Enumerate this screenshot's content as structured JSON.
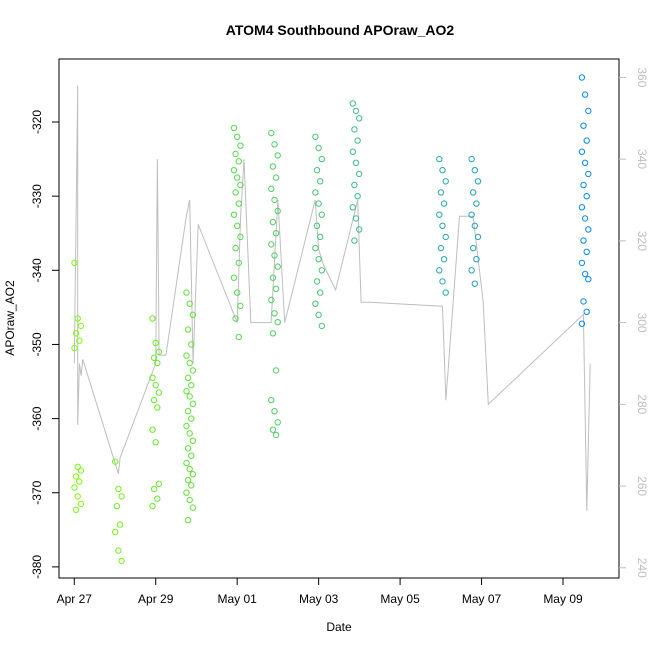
{
  "chart_data": {
    "type": "scatter",
    "title": "ATOM4 Southbound APOraw_AO2",
    "xlabel": "Date",
    "ylabel": "APOraw_AO2",
    "x_ticks": [
      "Apr 27",
      "Apr 29",
      "May 01",
      "May 03",
      "May 05",
      "May 07",
      "May 09"
    ],
    "y_ticks": [
      -320,
      -330,
      -340,
      -350,
      -360,
      -370,
      -380
    ],
    "y2_ticks": [
      240,
      260,
      280,
      300,
      320,
      340,
      360
    ],
    "xlim": [
      "2016-04-26 15:00",
      "2016-05-10 09:00"
    ],
    "ylim": [
      -381.5,
      -311.5
    ],
    "y2lim": [
      237.5,
      364.5
    ],
    "grid": false,
    "colors": {
      "points_start": "#80ff00",
      "points_end": "#0080ff",
      "line": "#bebebe",
      "axis": "#000000",
      "axis_right": "#bebebe"
    },
    "series": [
      {
        "type": "points",
        "clusters": [
          {
            "x": "2016-04-27 02:00",
            "y": [
              -339,
              -346.5,
              -347.5,
              -348.5,
              -349.5,
              -350.5,
              -366.5,
              -367,
              -367.8,
              -368.5,
              -369.3,
              -370.5,
              -371.5,
              -372.3
            ]
          },
          {
            "x": "2016-04-28 02:00",
            "y": [
              -365.8,
              -369.5,
              -370.5,
              -371.8,
              -374.3,
              -375.3,
              -377.8,
              -379.2
            ]
          },
          {
            "x": "2016-04-29 00:00",
            "y": [
              -346.5,
              -349.8,
              -351,
              -351.8,
              -352.5,
              -354.5,
              -355.5,
              -356.5,
              -357.5,
              -358.5,
              -361.5,
              -363.2,
              -368.8,
              -369.5,
              -370.8,
              -371.8
            ]
          },
          {
            "x": "2016-04-29 20:00",
            "y": [
              -343,
              -344.5,
              -346,
              -348,
              -350,
              -351.5,
              -352.5,
              -353.5,
              -354.5,
              -355.5,
              -356.3,
              -357,
              -358,
              -359,
              -360,
              -361,
              -362,
              -363,
              -364,
              -365,
              -366,
              -366.8,
              -367.5,
              -368.3,
              -369,
              -370,
              -371,
              -372,
              -373.7
            ]
          },
          {
            "x": "2016-05-01 00:00",
            "y": [
              -320.8,
              -322,
              -323.2,
              -324.3,
              -325.3,
              -326.5,
              -327.5,
              -328.5,
              -329.5,
              -331,
              -332.5,
              -334,
              -335.5,
              -337,
              -339,
              -341,
              -343,
              -344.8,
              -346.5,
              -349
            ]
          },
          {
            "x": "2016-05-01 22:00",
            "y": [
              -321.5,
              -323,
              -324.5,
              -326,
              -327.5,
              -329,
              -330.5,
              -332,
              -333.5,
              -335,
              -336.5,
              -338,
              -339.5,
              -341,
              -342.5,
              -344,
              -345.8,
              -347,
              -348.5,
              -353.5,
              -357.5,
              -359,
              -360.5,
              -361.5,
              -362.2
            ]
          },
          {
            "x": "2016-05-03 00:00",
            "y": [
              -322,
              -323.5,
              -325,
              -326.5,
              -328,
              -329.5,
              -331,
              -332.5,
              -334,
              -335.5,
              -337,
              -338.5,
              -340,
              -341.5,
              -343,
              -344.5,
              -346,
              -347.5
            ]
          },
          {
            "x": "2016-05-03 22:00",
            "y": [
              -317.5,
              -318.5,
              -319.5,
              -321,
              -322.5,
              -324,
              -325.5,
              -327,
              -328.5,
              -330,
              -331.5,
              -333,
              -334.5,
              -336
            ]
          },
          {
            "x": "2016-05-06 01:00",
            "y": [
              -325,
              -326.5,
              -328,
              -329.5,
              -331,
              -332.5,
              -334,
              -335.5,
              -337,
              -338.5,
              -340,
              -341.5,
              -343
            ]
          },
          {
            "x": "2016-05-06 20:00",
            "y": [
              -325,
              -326.5,
              -328,
              -329.5,
              -331,
              -332.5,
              -334,
              -335.5,
              -337,
              -338.5,
              -340,
              -341.8
            ]
          },
          {
            "x": "2016-05-09 13:00",
            "y": [
              -314,
              -316.3,
              -318.5,
              -320.5,
              -322.5,
              -324,
              -325.5,
              -327,
              -328.5,
              -330,
              -331.5,
              -333,
              -334.5,
              -336,
              -337.5,
              -339,
              -340.5,
              -341.2,
              -344.2,
              -345.6,
              -347.2
            ]
          }
        ]
      },
      {
        "type": "line",
        "axis": "right",
        "x": [
          "2016-04-27 00:00",
          "2016-04-27 02:00",
          "2016-04-27 02:00",
          "2016-04-27 03:00",
          "2016-04-27 04:00",
          "2016-04-27 05:00",
          "2016-04-28 02:00",
          "2016-04-28 03:00",
          "2016-04-28 04:00",
          "2016-04-29 00:00",
          "2016-04-29 01:00",
          "2016-04-29 02:00",
          "2016-04-29 06:00",
          "2016-04-29 18:00",
          "2016-04-29 20:00",
          "2016-04-29 22:00",
          "2016-04-30 01:00",
          "2016-05-01 00:00",
          "2016-05-01 02:00",
          "2016-05-01 04:00",
          "2016-05-01 08:00",
          "2016-05-01 20:00",
          "2016-05-02 00:00",
          "2016-05-02 04:00",
          "2016-05-02 22:00",
          "2016-05-03 00:00",
          "2016-05-03 03:00",
          "2016-05-03 10:00",
          "2016-05-03 23:00",
          "2016-05-04 01:00",
          "2016-05-04 06:00",
          "2016-05-06 01:00",
          "2016-05-06 03:00",
          "2016-05-06 11:00",
          "2016-05-06 19:00",
          "2016-05-07 01:00",
          "2016-05-07 04:00",
          "2016-05-09 12:00",
          "2016-05-09 14:00",
          "2016-05-09 16:00"
        ],
        "y": [
          290,
          358,
          275,
          290,
          287,
          291,
          263,
          267,
          268,
          290,
          340,
          292,
          292,
          326,
          330,
          290,
          324,
          300,
          326,
          340,
          300,
          300,
          330,
          300,
          330,
          318,
          314,
          308,
          330,
          305,
          305,
          304,
          281,
          326,
          326,
          305,
          280,
          302,
          254,
          290
        ]
      }
    ]
  }
}
